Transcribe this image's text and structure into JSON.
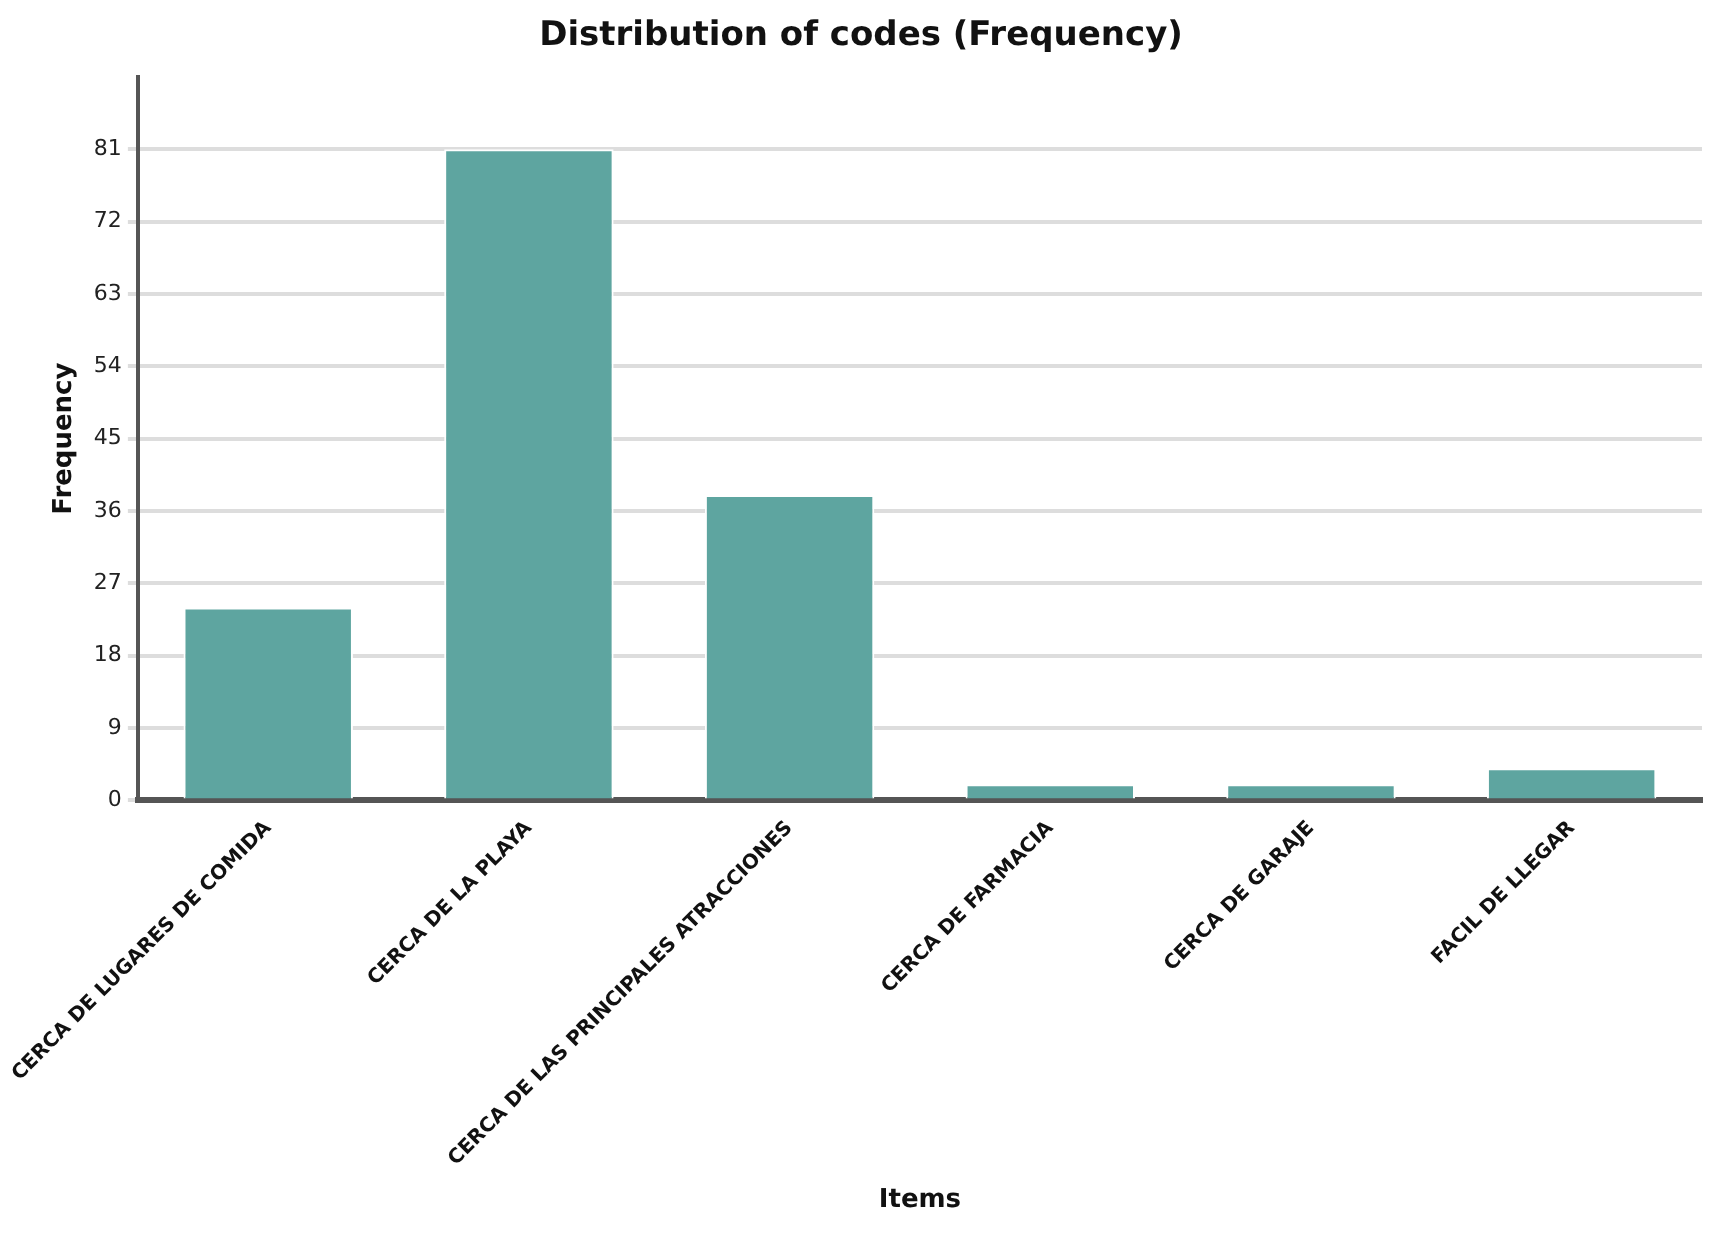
{
  "chart_data": {
    "type": "bar",
    "title": "Distribution of codes (Frequency)",
    "xlabel": "Items",
    "ylabel": "Frequency",
    "categories": [
      "CERCA DE LUGARES DE COMIDA",
      "CERCA DE LA PLAYA",
      "CERCA DE LAS PRINCIPALES ATRACCIONES",
      "CERCA DE FARMACIA",
      "CERCA DE GARAJE",
      "FACIL DE LLEGAR"
    ],
    "values": [
      24,
      81,
      38,
      2,
      2,
      4
    ],
    "color": "#5ea5a0",
    "ylim": [
      0,
      90
    ],
    "yticks": [
      0,
      9,
      18,
      27,
      36,
      45,
      54,
      63,
      72,
      81
    ],
    "grid": "y",
    "legend": false
  }
}
